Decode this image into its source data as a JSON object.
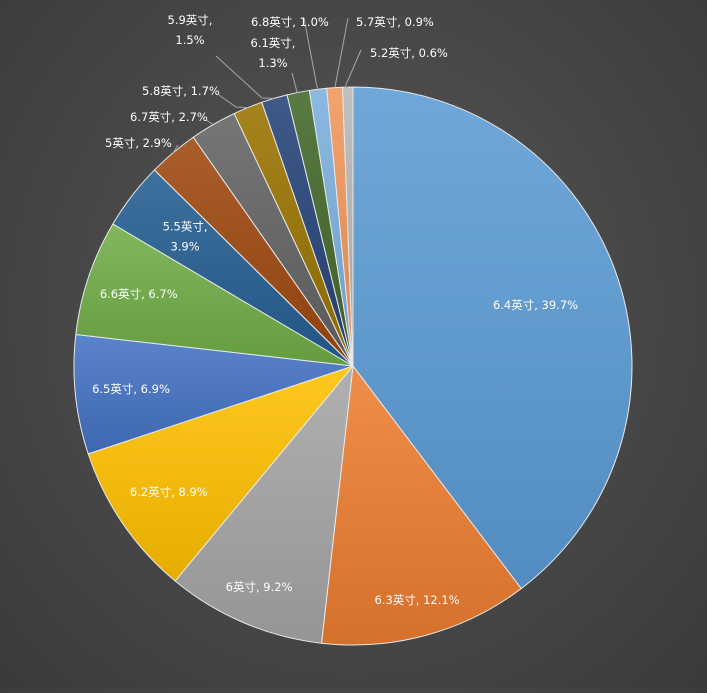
{
  "chart_data": {
    "type": "pie",
    "title": "",
    "slices": [
      {
        "label": "6.4英寸",
        "value": 39.7,
        "percent_label": "39.7%",
        "color": "#5b9bd5"
      },
      {
        "label": "6.3英寸",
        "value": 12.1,
        "percent_label": "12.1%",
        "color": "#ed7d31"
      },
      {
        "label": "6英寸",
        "value": 9.2,
        "percent_label": "9.2%",
        "color": "#a5a5a5"
      },
      {
        "label": "6.2英寸",
        "value": 8.9,
        "percent_label": "8.9%",
        "color": "#ffc000"
      },
      {
        "label": "6.5英寸",
        "value": 6.9,
        "percent_label": "6.9%",
        "color": "#4472c4"
      },
      {
        "label": "6.6英寸",
        "value": 6.7,
        "percent_label": "6.7%",
        "color": "#70ad47"
      },
      {
        "label": "5.5英寸",
        "value": 3.9,
        "percent_label": "3.9%",
        "color": "#255e91"
      },
      {
        "label": "5英寸",
        "value": 2.9,
        "percent_label": "2.9%",
        "color": "#9e480e"
      },
      {
        "label": "6.7英寸",
        "value": 2.7,
        "percent_label": "2.7%",
        "color": "#636363"
      },
      {
        "label": "5.8英寸",
        "value": 1.7,
        "percent_label": "1.7%",
        "color": "#997300"
      },
      {
        "label": "5.9英寸",
        "value": 1.5,
        "percent_label": "1.5%",
        "color": "#264478"
      },
      {
        "label": "6.1英寸",
        "value": 1.3,
        "percent_label": "1.3%",
        "color": "#43682b"
      },
      {
        "label": "6.8英寸",
        "value": 1.0,
        "percent_label": "1.0%",
        "color": "#7cafdd"
      },
      {
        "label": "5.7英寸",
        "value": 0.9,
        "percent_label": "0.9%",
        "color": "#f1975a"
      },
      {
        "label": "5.2英寸",
        "value": 0.6,
        "percent_label": "0.6%",
        "color": "#b7b7b7"
      }
    ]
  }
}
